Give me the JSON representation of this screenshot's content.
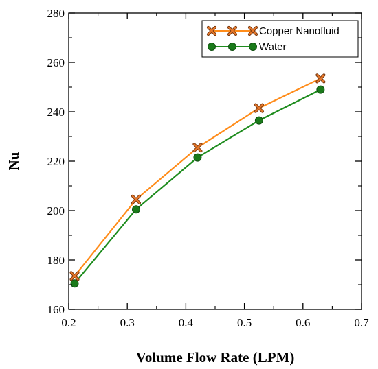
{
  "chart_data": {
    "type": "line",
    "title": "",
    "xlabel": "Volume Flow Rate (LPM)",
    "ylabel": "Nu",
    "xlim": [
      0.2,
      0.7
    ],
    "ylim": [
      160,
      280
    ],
    "xticks": [
      "0.2",
      "0.3",
      "0.4",
      "0.5",
      "0.6",
      "0.7"
    ],
    "yticks": [
      "160",
      "180",
      "200",
      "220",
      "240",
      "260",
      "280"
    ],
    "grid": false,
    "legend_position": "top-right",
    "x": [
      0.21,
      0.315,
      0.42,
      0.525,
      0.63
    ],
    "series": [
      {
        "name": "Copper Nanofluid",
        "values": [
          173.5,
          204.5,
          225.5,
          241.5,
          253.5
        ],
        "color": "#ff8c1a",
        "marker_color": "#e8782a",
        "marker": "x-cross-icon"
      },
      {
        "name": "Water",
        "values": [
          170.5,
          200.5,
          221.5,
          236.5,
          249
        ],
        "color": "#1e8c1e",
        "marker_color": "#1a7a1a",
        "marker": "filled-circle-icon"
      }
    ]
  }
}
